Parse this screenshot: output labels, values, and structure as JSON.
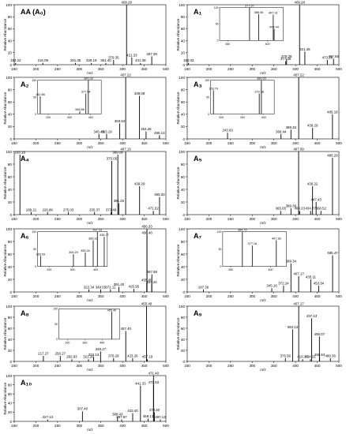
{
  "chart_data": [
    {
      "type": "bar",
      "label": "AA (A₀)",
      "xlabel": "m/z",
      "ylabel": "Relative Abundance",
      "xlim": [
        150,
        500
      ],
      "ylim": [
        0,
        100
      ],
      "x_ticks": [
        150,
        200,
        250,
        300,
        350,
        400,
        450,
        500
      ],
      "y_ticks": [
        0,
        20,
        40,
        60,
        80,
        100
      ],
      "peaks": [
        {
          "x": 153.22,
          "y": 3,
          "label": "153.22"
        },
        {
          "x": 216.09,
          "y": 3,
          "label": "216.09"
        },
        {
          "x": 291.35,
          "y": 3,
          "label": "291.35"
        },
        {
          "x": 328.19,
          "y": 3,
          "label": "328.19"
        },
        {
          "x": 361.4,
          "y": 3,
          "label": "361.40"
        },
        {
          "x": 379.35,
          "y": 8,
          "label": "379.35"
        },
        {
          "x": 409.28,
          "y": 100,
          "label": "409.28"
        },
        {
          "x": 421.33,
          "y": 12,
          "label": "421.33"
        },
        {
          "x": 441.38,
          "y": 3,
          "label": "441.38"
        },
        {
          "x": 467.39,
          "y": 14,
          "label": "467.39"
        }
      ]
    },
    {
      "type": "bar",
      "label": "A₁",
      "xlabel": "m/z",
      "ylabel": "Relative Abundance",
      "xlim": [
        150,
        500
      ],
      "ylim": [
        0,
        100
      ],
      "x_ticks": [
        150,
        200,
        250,
        300,
        350,
        400,
        450,
        500
      ],
      "y_ticks": [
        0,
        20,
        40,
        60,
        80,
        100
      ],
      "peaks": [
        {
          "x": 153.02,
          "y": 3,
          "label": "153.02"
        },
        {
          "x": 377.35,
          "y": 6,
          "label": "377.35"
        },
        {
          "x": 379.28,
          "y": 10,
          "label": "379.28"
        },
        {
          "x": 409.28,
          "y": 100,
          "label": "409.28"
        },
        {
          "x": 421.46,
          "y": 22,
          "label": "421.46"
        },
        {
          "x": 473.28,
          "y": 8,
          "label": "473.28"
        },
        {
          "x": 487.65,
          "y": 10,
          "label": "487.65"
        }
      ],
      "inset": {
        "xlim": [
          340,
          420
        ],
        "ylim": [
          0,
          100
        ],
        "x_ticks": [
          350,
          400
        ],
        "y_ticks": [
          0,
          50,
          100
        ],
        "peaks": [
          {
            "x": 377.57,
            "y": 100,
            "label": "377.57"
          },
          {
            "x": 388.95,
            "y": 80,
            "label": "388.95"
          },
          {
            "x": 407.31,
            "y": 78,
            "label": "407.31"
          },
          {
            "x": 408.44,
            "y": 35,
            "label": "408.44"
          }
        ]
      }
    },
    {
      "type": "bar",
      "label": "A₂",
      "xlabel": "m/z",
      "ylabel": "Relative Abundance",
      "xlim": [
        150,
        500
      ],
      "ylim": [
        0,
        100
      ],
      "x_ticks": [
        150,
        200,
        250,
        300,
        350,
        400,
        450,
        500
      ],
      "y_ticks": [
        0,
        20,
        40,
        60,
        80,
        100
      ],
      "peaks": [
        {
          "x": 345.48,
          "y": 8,
          "label": "345.48"
        },
        {
          "x": 363.18,
          "y": 8,
          "label": "363.18"
        },
        {
          "x": 393.52,
          "y": 25,
          "label": "393.52"
        },
        {
          "x": 407.22,
          "y": 100,
          "label": "407.22"
        },
        {
          "x": 439.09,
          "y": 70,
          "label": "439.09"
        },
        {
          "x": 454.26,
          "y": 12,
          "label": "454.26"
        },
        {
          "x": 485.13,
          "y": 6,
          "label": "485.13"
        }
      ],
      "inset": {
        "xlim": [
          150,
          450
        ],
        "ylim": [
          0,
          100
        ],
        "x_ticks": [
          200,
          300,
          400
        ],
        "y_ticks": [
          0,
          50,
          100
        ],
        "peaks": [
          {
            "x": 162.66,
            "y": 52,
            "label": "162.66"
          },
          {
            "x": 348.88,
            "y": 8,
            "label": "348.88"
          },
          {
            "x": 377.64,
            "y": 60,
            "label": "377.64"
          },
          {
            "x": 389.28,
            "y": 100,
            "label": "389.28"
          }
        ]
      }
    },
    {
      "type": "bar",
      "label": "A₃",
      "xlabel": "m/z",
      "ylabel": "Relative Abundance",
      "xlim": [
        150,
        500
      ],
      "ylim": [
        0,
        100
      ],
      "x_ticks": [
        150,
        200,
        250,
        300,
        350,
        400,
        450,
        500
      ],
      "y_ticks": [
        0,
        20,
        40,
        60,
        80,
        100
      ],
      "peaks": [
        {
          "x": 243.03,
          "y": 10,
          "label": "243.03"
        },
        {
          "x": 366.44,
          "y": 8,
          "label": "366.44"
        },
        {
          "x": 389.33,
          "y": 15,
          "label": "389.33"
        },
        {
          "x": 407.22,
          "y": 100,
          "label": "407.22"
        },
        {
          "x": 439.29,
          "y": 18,
          "label": "439.29"
        },
        {
          "x": 485.19,
          "y": 40,
          "label": "485.19"
        }
      ],
      "inset": {
        "xlim": [
          150,
          450
        ],
        "ylim": [
          0,
          100
        ],
        "x_ticks": [
          200,
          300,
          400
        ],
        "y_ticks": [
          0,
          50,
          100
        ],
        "peaks": [
          {
            "x": 163.74,
            "y": 70,
            "label": "163.74"
          },
          {
            "x": 379.38,
            "y": 60,
            "label": "379.38"
          },
          {
            "x": 389.55,
            "y": 100,
            "label": "389.55"
          }
        ]
      }
    },
    {
      "type": "bar",
      "label": "A₄",
      "xlabel": "m/z",
      "ylabel": "Relative Abundance",
      "xlim": [
        150,
        500
      ],
      "ylim": [
        0,
        100
      ],
      "x_ticks": [
        150,
        200,
        250,
        300,
        350,
        400,
        450,
        500
      ],
      "y_ticks": [
        0,
        20,
        40,
        60,
        80,
        100
      ],
      "peaks": [
        {
          "x": 163.18,
          "y": 95,
          "label": "163.18"
        },
        {
          "x": 189.21,
          "y": 4,
          "label": "189.21"
        },
        {
          "x": 226.86,
          "y": 4,
          "label": "226.86"
        },
        {
          "x": 275.03,
          "y": 4,
          "label": "275.03"
        },
        {
          "x": 335.37,
          "y": 4,
          "label": "335.37"
        },
        {
          "x": 373.49,
          "y": 4,
          "label": "373.49"
        },
        {
          "x": 375.05,
          "y": 85,
          "label": "375.05"
        },
        {
          "x": 389.08,
          "y": 95,
          "label": "389.08"
        },
        {
          "x": 391.25,
          "y": 18,
          "label": "391.25"
        },
        {
          "x": 407.15,
          "y": 100,
          "label": "407.15"
        },
        {
          "x": 439.29,
          "y": 45,
          "label": "439.29"
        },
        {
          "x": 471.02,
          "y": 6,
          "label": "471.02"
        },
        {
          "x": 485.32,
          "y": 28,
          "label": "485.32"
        }
      ]
    },
    {
      "type": "bar",
      "label": "A₅",
      "xlabel": "m/z",
      "ylabel": "Relative Abundance",
      "xlim": [
        150,
        500
      ],
      "ylim": [
        0,
        100
      ],
      "x_ticks": [
        150,
        200,
        250,
        300,
        350,
        400,
        450,
        500
      ],
      "y_ticks": [
        0,
        20,
        40,
        60,
        80,
        100
      ],
      "peaks": [
        {
          "x": 365.65,
          "y": 6,
          "label": "365.65"
        },
        {
          "x": 389.39,
          "y": 10,
          "label": "389.39"
        },
        {
          "x": 407.09,
          "y": 100,
          "label": "407.09"
        },
        {
          "x": 409.23,
          "y": 6,
          "label": "409.23"
        },
        {
          "x": 434.77,
          "y": 6,
          "label": "434.77"
        },
        {
          "x": 439.22,
          "y": 45,
          "label": "439.22"
        },
        {
          "x": 447.43,
          "y": 20,
          "label": "447.43"
        },
        {
          "x": 458.52,
          "y": 6,
          "label": "458.52"
        },
        {
          "x": 485.29,
          "y": 90,
          "label": "485.29"
        },
        {
          "x": 503.18,
          "y": 8,
          "label": "503.18"
        }
      ]
    },
    {
      "type": "bar",
      "label": "A₆",
      "xlabel": "m/z",
      "ylabel": "Relative Abundance",
      "xlim": [
        150,
        500
      ],
      "ylim": [
        0,
        100
      ],
      "x_ticks": [
        150,
        200,
        250,
        300,
        350,
        400,
        450,
        500
      ],
      "y_ticks": [
        0,
        20,
        40,
        60,
        80,
        100
      ],
      "peaks": [
        {
          "x": 322.34,
          "y": 4,
          "label": "322.34"
        },
        {
          "x": 349.55,
          "y": 4,
          "label": "349.55"
        },
        {
          "x": 372.11,
          "y": 4,
          "label": "372.11"
        },
        {
          "x": 391.4,
          "y": 8,
          "label": "391.40"
        },
        {
          "x": 425.95,
          "y": 5,
          "label": "425.95"
        },
        {
          "x": 455.8,
          "y": 15,
          "label": "455.80"
        },
        {
          "x": 456.33,
          "y": 100,
          "label": "456.33"
        },
        {
          "x": 456.46,
          "y": 90,
          "label": "456.46"
        },
        {
          "x": 467.59,
          "y": 28,
          "label": "467.59"
        },
        {
          "x": 467.24,
          "y": 12,
          "label": "467.24"
        },
        {
          "x": 503.43,
          "y": 4,
          "label": "503.43"
        }
      ],
      "inset": {
        "xlim": [
          150,
          450
        ],
        "ylim": [
          0,
          100
        ],
        "x_ticks": [
          200,
          300,
          400
        ],
        "y_ticks": [
          0,
          50,
          100
        ],
        "peaks": [
          {
            "x": 163.09,
            "y": 30,
            "label": "163.09"
          },
          {
            "x": 304.29,
            "y": 35,
            "label": "304.29"
          },
          {
            "x": 355.34,
            "y": 40,
            "label": "355.34"
          },
          {
            "x": 389.33,
            "y": 75,
            "label": "389.33"
          },
          {
            "x": 407.33,
            "y": 100,
            "label": "407.33"
          },
          {
            "x": 436.77,
            "y": 85,
            "label": "436.77"
          }
        ]
      }
    },
    {
      "type": "bar",
      "label": "A₇",
      "xlabel": "m/z",
      "ylabel": "Relative Abundance",
      "xlim": [
        150,
        500
      ],
      "ylim": [
        0,
        100
      ],
      "x_ticks": [
        150,
        200,
        250,
        300,
        350,
        400,
        450,
        500
      ],
      "y_ticks": [
        0,
        20,
        40,
        60,
        80,
        100
      ],
      "peaks": [
        {
          "x": 187.36,
          "y": 4,
          "label": "187.36"
        },
        {
          "x": 345.16,
          "y": 6,
          "label": "345.16"
        },
        {
          "x": 372.24,
          "y": 10,
          "label": "372.24"
        },
        {
          "x": 389.34,
          "y": 45,
          "label": "389.34"
        },
        {
          "x": 407.17,
          "y": 25,
          "label": "407.17"
        },
        {
          "x": 435.11,
          "y": 20,
          "label": "435.11"
        },
        {
          "x": 453.34,
          "y": 10,
          "label": "453.34"
        },
        {
          "x": 485.47,
          "y": 58,
          "label": "485.47"
        },
        {
          "x": 503.36,
          "y": 100,
          "label": "503.36"
        }
      ],
      "inset": {
        "xlim": [
          340,
          420
        ],
        "ylim": [
          0,
          100
        ],
        "x_ticks": [
          350,
          400
        ],
        "y_ticks": [
          0,
          50,
          100
        ],
        "peaks": [
          {
            "x": 364.75,
            "y": 100,
            "label": "364.75"
          },
          {
            "x": 377.16,
            "y": 60,
            "label": "377.16"
          },
          {
            "x": 407.38,
            "y": 75,
            "label": "407.38"
          }
        ]
      }
    },
    {
      "type": "bar",
      "label": "A₈",
      "xlabel": "m/z",
      "ylabel": "Relative Abundance",
      "xlim": [
        150,
        500
      ],
      "ylim": [
        0,
        100
      ],
      "x_ticks": [
        150,
        200,
        250,
        300,
        350,
        400,
        450,
        500
      ],
      "y_ticks": [
        0,
        20,
        40,
        60,
        80,
        100
      ],
      "peaks": [
        {
          "x": 217.27,
          "y": 10,
          "label": "217.27"
        },
        {
          "x": 256.27,
          "y": 10,
          "label": "256.27"
        },
        {
          "x": 282.93,
          "y": 4,
          "label": "282.93"
        },
        {
          "x": 321.28,
          "y": 4,
          "label": "321.28"
        },
        {
          "x": 333.13,
          "y": 8,
          "label": "333.13"
        },
        {
          "x": 349.27,
          "y": 18,
          "label": "349.27"
        },
        {
          "x": 379.29,
          "y": 6,
          "label": "379.29"
        },
        {
          "x": 407.4,
          "y": 55,
          "label": "407.40"
        },
        {
          "x": 423.26,
          "y": 6,
          "label": "423.26"
        },
        {
          "x": 455.4,
          "y": 100,
          "label": "455.40"
        },
        {
          "x": 457.19,
          "y": 4,
          "label": "457.19"
        },
        {
          "x": 501.77,
          "y": 4,
          "label": "501.77"
        }
      ],
      "inset": {
        "xlim": [
          150,
          500
        ],
        "ylim": [
          0,
          100
        ],
        "x_ticks": [
          200,
          300,
          400
        ],
        "y_ticks": [
          0,
          50,
          100
        ],
        "peaks": [
          {
            "x": 455.4,
            "y": 90,
            "label": "455.40"
          }
        ]
      }
    },
    {
      "type": "bar",
      "label": "A₉",
      "xlabel": "m/z",
      "ylabel": "Relative Abundance",
      "xlim": [
        150,
        500
      ],
      "ylim": [
        0,
        100
      ],
      "x_ticks": [
        150,
        200,
        250,
        300,
        350,
        400,
        450,
        500
      ],
      "y_ticks": [
        0,
        20,
        40,
        60,
        80,
        100
      ],
      "peaks": [
        {
          "x": 376.56,
          "y": 6,
          "label": "376.56"
        },
        {
          "x": 393.13,
          "y": 58,
          "label": "393.13"
        },
        {
          "x": 407.27,
          "y": 100,
          "label": "407.27"
        },
        {
          "x": 416.3,
          "y": 4,
          "label": "416.30"
        },
        {
          "x": 434.31,
          "y": 4,
          "label": "434.31"
        },
        {
          "x": 437.13,
          "y": 78,
          "label": "437.13"
        },
        {
          "x": 455.07,
          "y": 45,
          "label": "455.07"
        },
        {
          "x": 455.53,
          "y": 8,
          "label": "455.53"
        },
        {
          "x": 480.36,
          "y": 6,
          "label": "480.36"
        },
        {
          "x": 500.44,
          "y": 100,
          "label": "500.44"
        }
      ]
    },
    {
      "type": "bar",
      "label": "A₁₀",
      "xlabel": "m/z",
      "ylabel": "Relative Abundance",
      "xlim": [
        150,
        500
      ],
      "ylim": [
        0,
        100
      ],
      "x_ticks": [
        150,
        200,
        250,
        300,
        350,
        400,
        450,
        500
      ],
      "y_ticks": [
        0,
        20,
        40,
        60,
        80,
        100
      ],
      "peaks": [
        {
          "x": 227.13,
          "y": 4,
          "label": "227.13"
        },
        {
          "x": 307.4,
          "y": 22,
          "label": "307.40"
        },
        {
          "x": 388.43,
          "y": 10,
          "label": "388.43"
        },
        {
          "x": 397.87,
          "y": 4,
          "label": "397.87"
        },
        {
          "x": 423.4,
          "y": 18,
          "label": "423.40"
        },
        {
          "x": 441.33,
          "y": 78,
          "label": "441.33"
        },
        {
          "x": 459.13,
          "y": 6,
          "label": "459.13"
        },
        {
          "x": 471.53,
          "y": 80,
          "label": "471.53"
        },
        {
          "x": 471.4,
          "y": 100,
          "label": "471.40"
        },
        {
          "x": 473.4,
          "y": 20,
          "label": "473.40"
        },
        {
          "x": 487.13,
          "y": 4,
          "label": "487.13"
        },
        {
          "x": 517.33,
          "y": 4,
          "label": "517.33"
        }
      ]
    }
  ]
}
